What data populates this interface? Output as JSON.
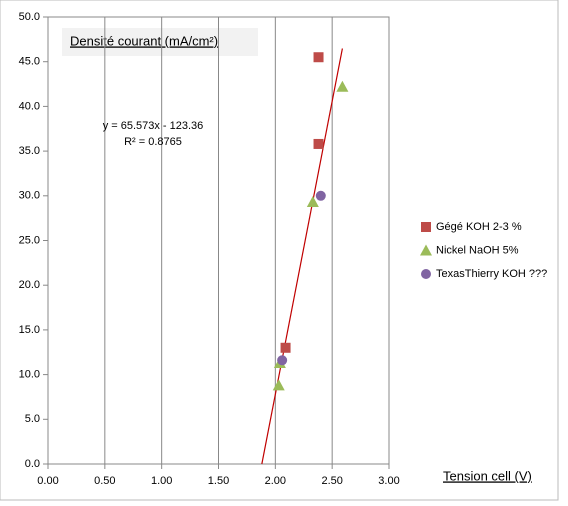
{
  "chart_data": {
    "type": "scatter",
    "title": "Densité courant (mA/cm²)",
    "x_label": "Tension cell (V)",
    "xlim": [
      0,
      3
    ],
    "ylim": [
      0,
      50
    ],
    "xticks": [
      {
        "value": 0,
        "label": "0.00"
      },
      {
        "value": 0.5,
        "label": "0.50"
      },
      {
        "value": 1,
        "label": "1.00"
      },
      {
        "value": 1.5,
        "label": "1.50"
      },
      {
        "value": 2,
        "label": "2.00"
      },
      {
        "value": 2.5,
        "label": "2.50"
      },
      {
        "value": 3,
        "label": "3.00"
      }
    ],
    "yticks": [
      {
        "value": 0,
        "label": "0.0"
      },
      {
        "value": 5,
        "label": "5.0"
      },
      {
        "value": 10,
        "label": "10.0"
      },
      {
        "value": 15,
        "label": "15.0"
      },
      {
        "value": 20,
        "label": "20.0"
      },
      {
        "value": 25,
        "label": "25.0"
      },
      {
        "value": 30,
        "label": "30.0"
      },
      {
        "value": 35,
        "label": "35.0"
      },
      {
        "value": 40,
        "label": "40.0"
      },
      {
        "value": 45,
        "label": "45.0"
      },
      {
        "value": 50,
        "label": "50.0"
      }
    ],
    "grid": "x",
    "legend": "right",
    "series": [
      {
        "name": "Gégé KOH 2-3 %",
        "color": "#be4b48",
        "marker": "square",
        "x": [
          2.38,
          2.38,
          2.09
        ],
        "values": [
          45.5,
          35.8,
          13.0
        ]
      },
      {
        "name": "Nickel NaOH 5%",
        "color": "#9bbb59",
        "marker": "triangle",
        "x": [
          2.59,
          2.33,
          2.04,
          2.03
        ],
        "values": [
          42.2,
          29.3,
          11.3,
          8.8
        ]
      },
      {
        "name": "TexasThierry KOH ???",
        "color": "#8064a2",
        "marker": "circle",
        "x": [
          2.4,
          2.06
        ],
        "values": [
          30.0,
          11.6
        ]
      }
    ],
    "trendline": {
      "equation": "y = 65.573x - 123.36",
      "r2": "R² = 0.8765",
      "slope": 65.573,
      "intercept": -123.36,
      "color": "#c00000"
    }
  }
}
